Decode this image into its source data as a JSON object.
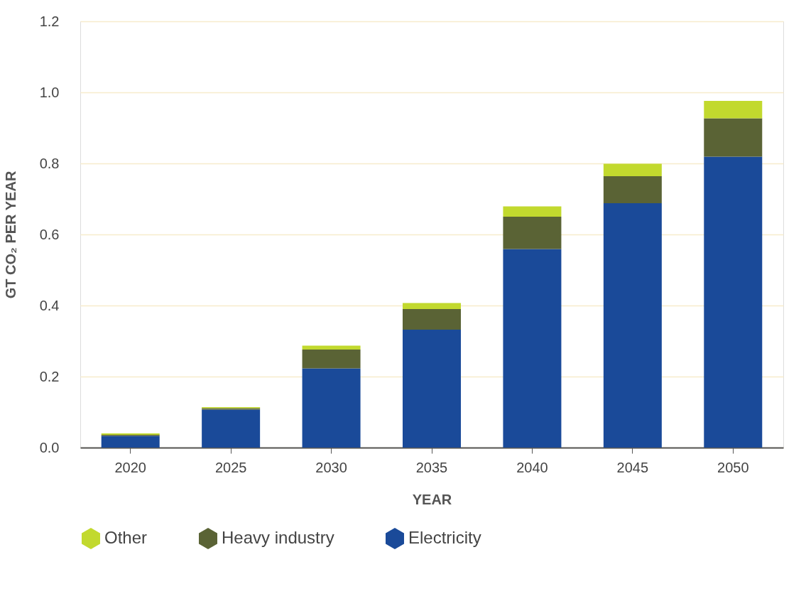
{
  "chart_data": {
    "type": "bar",
    "stacked": true,
    "xlabel": "YEAR",
    "ylabel": "GT CO₂ PER YEAR",
    "categories": [
      "2020",
      "2025",
      "2030",
      "2035",
      "2040",
      "2045",
      "2050"
    ],
    "series": [
      {
        "name": "Electricity",
        "color": "#1a4a99",
        "values": [
          0.033,
          0.107,
          0.223,
          0.332,
          0.559,
          0.688,
          0.819
        ]
      },
      {
        "name": "Heavy industry",
        "color": "#5a6335",
        "values": [
          0.003,
          0.004,
          0.053,
          0.058,
          0.091,
          0.076,
          0.108
        ]
      },
      {
        "name": "Other",
        "color": "#c2d92e",
        "values": [
          0.004,
          0.003,
          0.011,
          0.017,
          0.029,
          0.035,
          0.049
        ]
      }
    ],
    "ylim": [
      0,
      1.2
    ],
    "yticks": [
      {
        "value": 0,
        "label": "0.0"
      },
      {
        "value": 0.2,
        "label": "0.2"
      },
      {
        "value": 0.4,
        "label": "0.4"
      },
      {
        "value": 0.6,
        "label": "0.6"
      },
      {
        "value": 0.8,
        "label": "0.8"
      },
      {
        "value": 1.0,
        "label": "1.0"
      },
      {
        "value": 1.2,
        "label": "1.2"
      }
    ],
    "grid": "y",
    "legend": "bottom left"
  }
}
